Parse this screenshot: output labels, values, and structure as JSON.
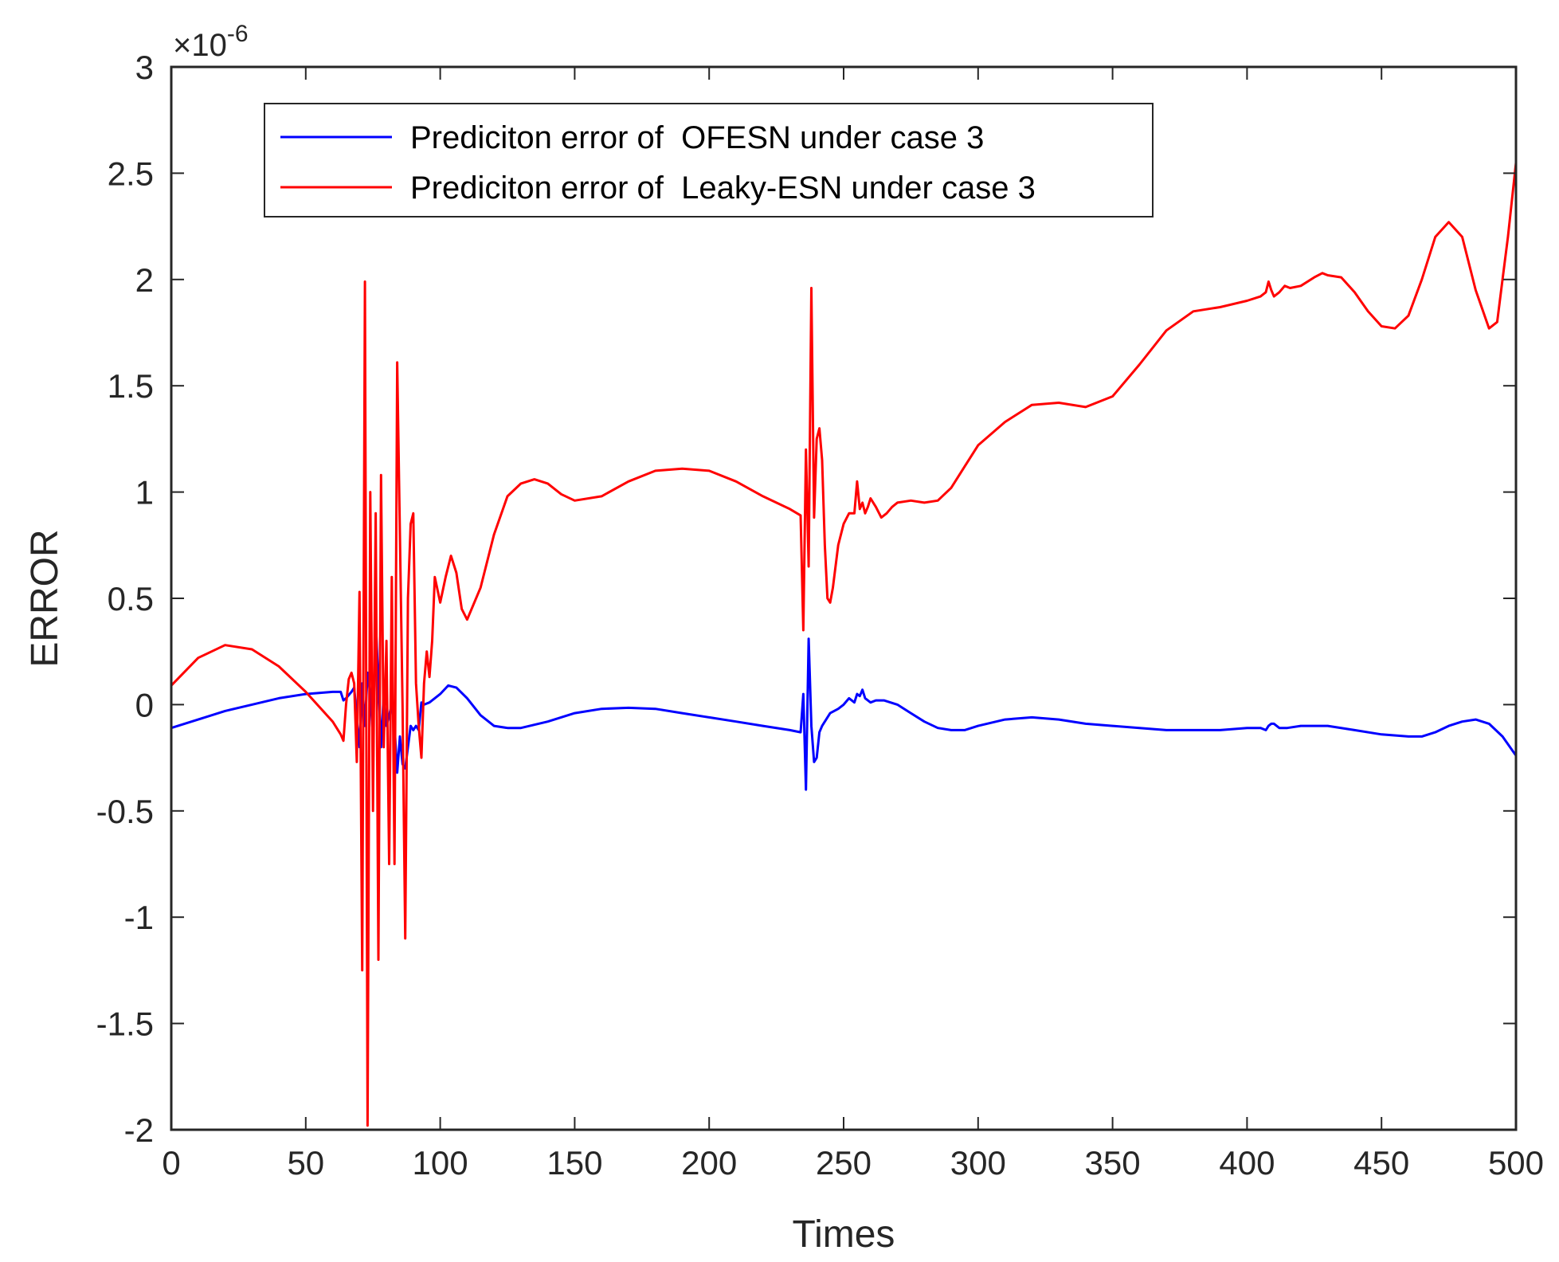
{
  "chart_data": {
    "type": "line",
    "title": "",
    "xlabel": "Times",
    "ylabel": "ERROR",
    "xlim": [
      0,
      500
    ],
    "ylim": [
      -2,
      3
    ],
    "x_ticks": [
      0,
      50,
      100,
      150,
      200,
      250,
      300,
      350,
      400,
      450,
      500
    ],
    "x_tick_labels": [
      "0",
      "50",
      "100",
      "150",
      "200",
      "250",
      "300",
      "350",
      "400",
      "450",
      "500"
    ],
    "y_ticks": [
      -2,
      -1.5,
      -1,
      -0.5,
      0,
      0.5,
      1,
      1.5,
      2,
      2.5,
      3
    ],
    "y_tick_labels": [
      "-2",
      "-1.5",
      "-1",
      "-0.5",
      "0",
      "0.5",
      "1",
      "1.5",
      "2",
      "2.5",
      "3"
    ],
    "y_exponent_base": "×10",
    "y_exponent_power": "-6",
    "grid": false,
    "legend_position": "top-left",
    "series": [
      {
        "name": "Prediciton error of  OFESN under case 3",
        "color": "#0000ff",
        "x": [
          0,
          10,
          20,
          30,
          40,
          50,
          60,
          63,
          64,
          65,
          67,
          68,
          70,
          71,
          72,
          73,
          74,
          75,
          76,
          77,
          78,
          79,
          80,
          81,
          82,
          83,
          84,
          85,
          86,
          87,
          88,
          89,
          90,
          91,
          92,
          93,
          94,
          96,
          98,
          100,
          103,
          106,
          110,
          115,
          120,
          125,
          130,
          140,
          150,
          160,
          170,
          180,
          190,
          200,
          210,
          220,
          230,
          234,
          235,
          236,
          237,
          238,
          239,
          240,
          241,
          242,
          243,
          245,
          248,
          250,
          252,
          254,
          255,
          256,
          257,
          258,
          260,
          262,
          265,
          270,
          275,
          280,
          285,
          290,
          295,
          300,
          310,
          320,
          330,
          340,
          350,
          360,
          370,
          380,
          390,
          400,
          405,
          407,
          408,
          409,
          410,
          412,
          415,
          420,
          430,
          440,
          450,
          460,
          465,
          470,
          475,
          480,
          485,
          490,
          495,
          500
        ],
        "y": [
          -0.11,
          -0.07,
          -0.03,
          0.0,
          0.03,
          0.05,
          0.06,
          0.06,
          0.02,
          0.03,
          0.06,
          0.08,
          -0.2,
          0.1,
          -0.1,
          0.15,
          0.05,
          -0.15,
          0.4,
          0.1,
          -0.2,
          0.05,
          -0.1,
          -0.05,
          0.0,
          -0.1,
          -0.32,
          -0.15,
          -0.28,
          -0.3,
          -0.2,
          -0.1,
          -0.12,
          -0.1,
          -0.12,
          0.01,
          0.0,
          0.01,
          0.03,
          0.05,
          0.09,
          0.08,
          0.03,
          -0.05,
          -0.1,
          -0.11,
          -0.11,
          -0.08,
          -0.04,
          -0.02,
          -0.015,
          -0.02,
          -0.04,
          -0.06,
          -0.08,
          -0.1,
          -0.12,
          -0.13,
          0.05,
          -0.4,
          0.31,
          -0.1,
          -0.27,
          -0.25,
          -0.13,
          -0.1,
          -0.08,
          -0.04,
          -0.02,
          0.0,
          0.03,
          0.01,
          0.05,
          0.04,
          0.07,
          0.03,
          0.01,
          0.02,
          0.02,
          0.0,
          -0.04,
          -0.08,
          -0.11,
          -0.12,
          -0.12,
          -0.1,
          -0.07,
          -0.06,
          -0.07,
          -0.09,
          -0.1,
          -0.11,
          -0.12,
          -0.12,
          -0.12,
          -0.11,
          -0.11,
          -0.12,
          -0.1,
          -0.09,
          -0.09,
          -0.11,
          -0.11,
          -0.1,
          -0.1,
          -0.12,
          -0.14,
          -0.15,
          -0.15,
          -0.13,
          -0.1,
          -0.08,
          -0.07,
          -0.09,
          -0.15,
          -0.24
        ]
      },
      {
        "name": "Prediciton error of  Leaky-ESN under case 3",
        "color": "#ff0000",
        "x": [
          0,
          10,
          20,
          30,
          40,
          50,
          60,
          63,
          64,
          65,
          66,
          67,
          68,
          69,
          70,
          71,
          72,
          73,
          74,
          75,
          76,
          77,
          78,
          79,
          80,
          81,
          82,
          83,
          84,
          85,
          86,
          87,
          88,
          89,
          90,
          91,
          92,
          93,
          94,
          95,
          96,
          97,
          98,
          100,
          102,
          104,
          106,
          108,
          110,
          115,
          120,
          125,
          130,
          135,
          140,
          145,
          150,
          160,
          170,
          180,
          190,
          200,
          210,
          220,
          230,
          234,
          235,
          236,
          237,
          238,
          239,
          240,
          241,
          242,
          243,
          244,
          245,
          246,
          248,
          250,
          252,
          254,
          255,
          256,
          257,
          258,
          259,
          260,
          262,
          264,
          266,
          268,
          270,
          275,
          280,
          285,
          290,
          295,
          300,
          310,
          320,
          330,
          340,
          350,
          360,
          370,
          380,
          390,
          400,
          405,
          407,
          408,
          409,
          410,
          412,
          414,
          416,
          420,
          425,
          428,
          430,
          435,
          440,
          445,
          450,
          455,
          460,
          465,
          470,
          475,
          480,
          485,
          490,
          493,
          495,
          497,
          500
        ],
        "y": [
          0.09,
          0.22,
          0.28,
          0.26,
          0.18,
          0.06,
          -0.08,
          -0.14,
          -0.17,
          0.0,
          0.12,
          0.15,
          0.1,
          -0.27,
          0.53,
          -1.25,
          1.99,
          -1.98,
          1.0,
          -0.5,
          0.9,
          -1.2,
          1.08,
          -0.2,
          0.3,
          -0.75,
          0.6,
          -0.75,
          1.61,
          0.8,
          0.0,
          -1.1,
          0.5,
          0.85,
          0.9,
          0.1,
          -0.1,
          -0.25,
          0.1,
          0.25,
          0.13,
          0.3,
          0.6,
          0.48,
          0.6,
          0.7,
          0.62,
          0.45,
          0.4,
          0.55,
          0.8,
          0.98,
          1.04,
          1.06,
          1.04,
          0.99,
          0.96,
          0.98,
          1.05,
          1.1,
          1.11,
          1.1,
          1.05,
          0.98,
          0.92,
          0.89,
          0.35,
          1.2,
          0.65,
          1.96,
          0.88,
          1.25,
          1.3,
          1.15,
          0.75,
          0.5,
          0.48,
          0.55,
          0.75,
          0.85,
          0.9,
          0.9,
          1.05,
          0.92,
          0.95,
          0.9,
          0.93,
          0.97,
          0.93,
          0.88,
          0.9,
          0.93,
          0.95,
          0.96,
          0.95,
          0.96,
          1.02,
          1.12,
          1.22,
          1.33,
          1.41,
          1.42,
          1.4,
          1.45,
          1.6,
          1.76,
          1.85,
          1.87,
          1.9,
          1.92,
          1.94,
          1.99,
          1.95,
          1.92,
          1.94,
          1.97,
          1.96,
          1.97,
          2.01,
          2.03,
          2.02,
          2.01,
          1.94,
          1.85,
          1.78,
          1.77,
          1.83,
          2.0,
          2.2,
          2.27,
          2.2,
          1.95,
          1.77,
          1.8,
          2.0,
          2.2,
          2.55
        ]
      }
    ]
  }
}
